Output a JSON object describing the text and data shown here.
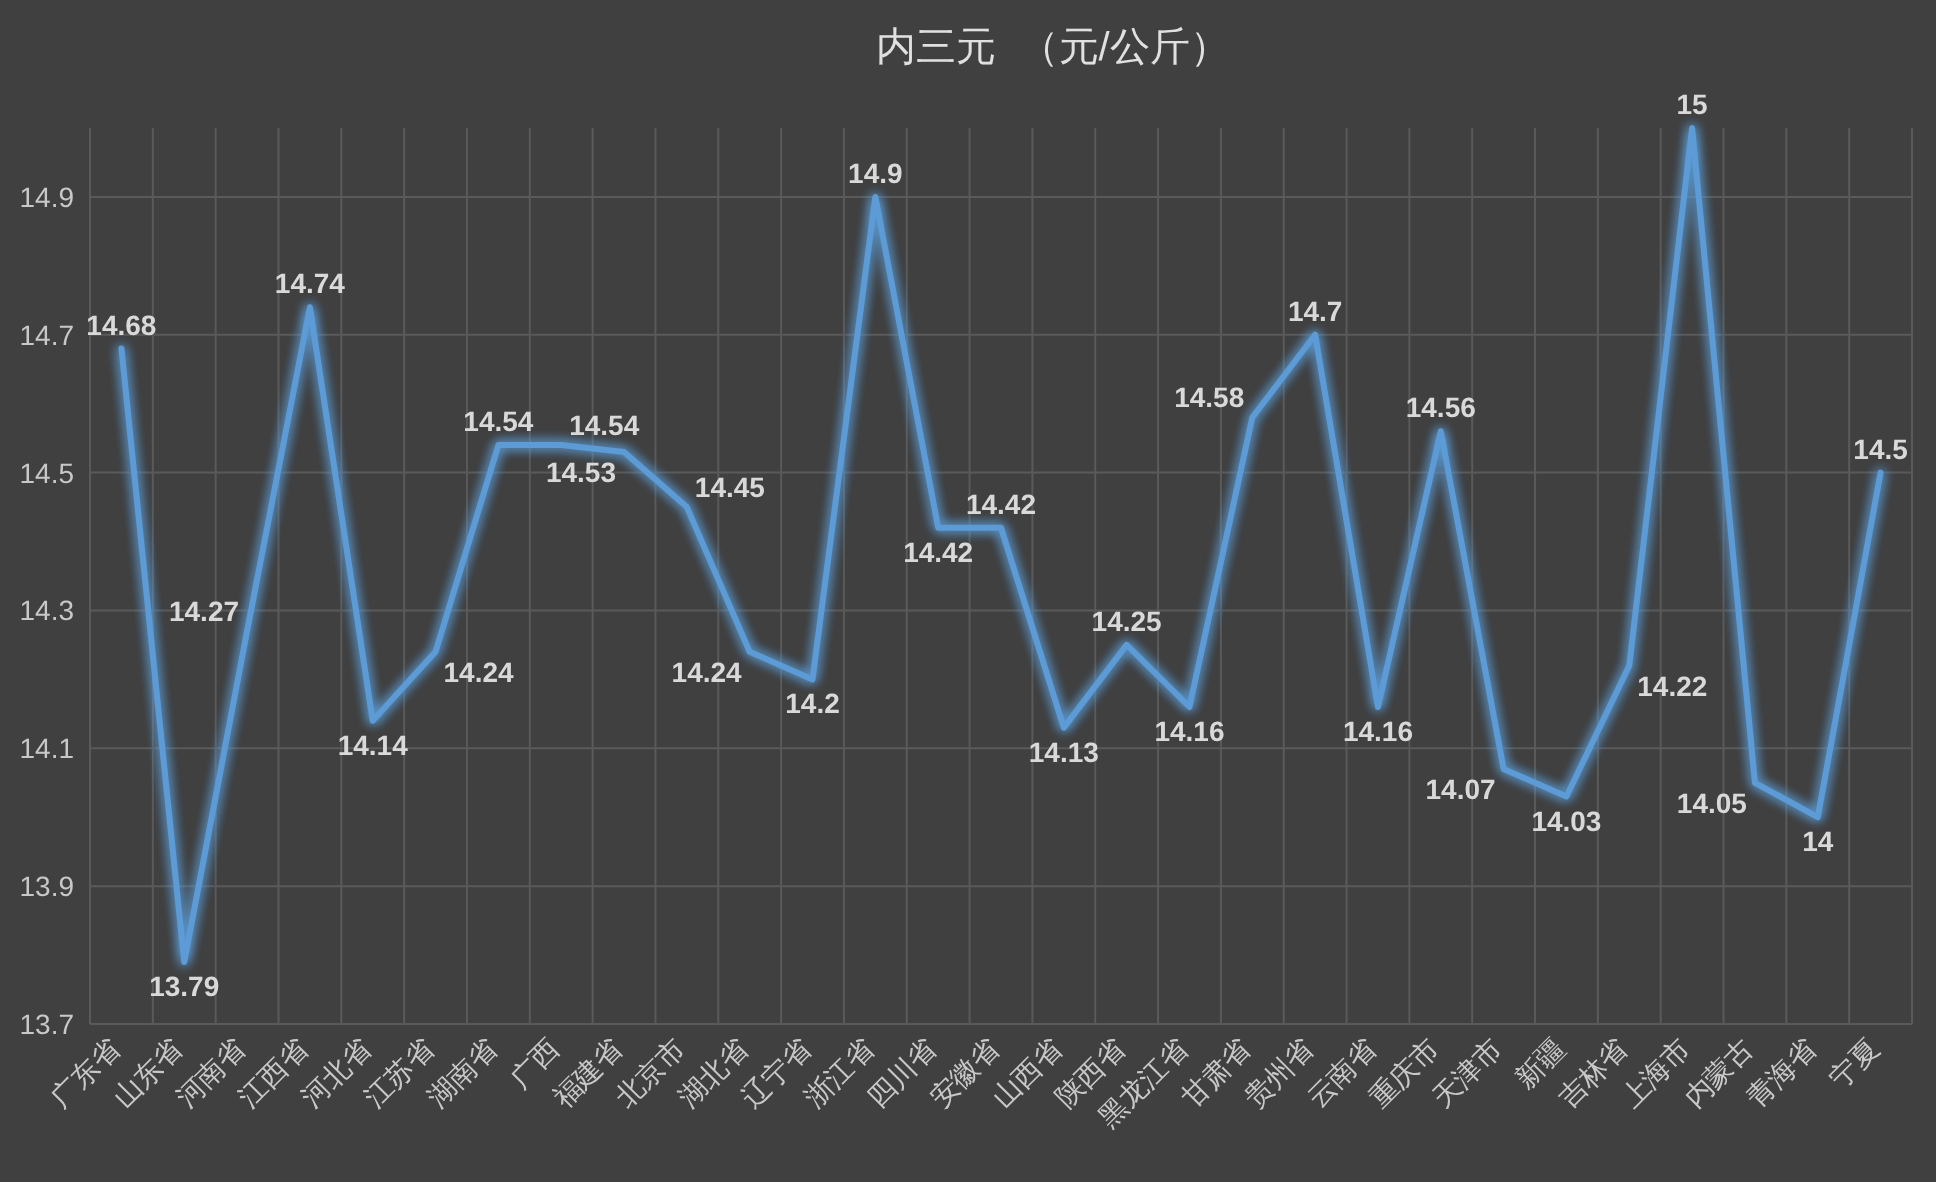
{
  "chart_data": {
    "type": "line",
    "title": "内三元  （元/公斤）",
    "categories": [
      "广东省",
      "山东省",
      "河南省",
      "江西省",
      "河北省",
      "江苏省",
      "湖南省",
      "广西",
      "福建省",
      "北京市",
      "湖北省",
      "辽宁省",
      "浙江省",
      "四川省",
      "安徽省",
      "山西省",
      "陕西省",
      "黑龙江省",
      "甘肃省",
      "贵州省",
      "云南省",
      "重庆市",
      "天津市",
      "新疆",
      "吉林省",
      "上海市",
      "内蒙古",
      "青海省",
      "宁夏"
    ],
    "series": [
      {
        "color": "#5b9bd5",
        "values": [
          14.68,
          13.79,
          14.27,
          14.74,
          14.14,
          14.24,
          14.54,
          14.54,
          14.53,
          14.45,
          14.24,
          14.2,
          14.9,
          14.42,
          14.42,
          14.13,
          14.25,
          14.16,
          14.58,
          14.7,
          14.16,
          14.56,
          14.07,
          14.03,
          14.22,
          15,
          14.05,
          14,
          14.5
        ]
      }
    ],
    "ylim": [
      13.7,
      15.0
    ],
    "yticks": [
      13.7,
      13.9,
      14.1,
      14.3,
      14.5,
      14.7,
      14.9
    ],
    "grid": true,
    "data_labels": true
  }
}
